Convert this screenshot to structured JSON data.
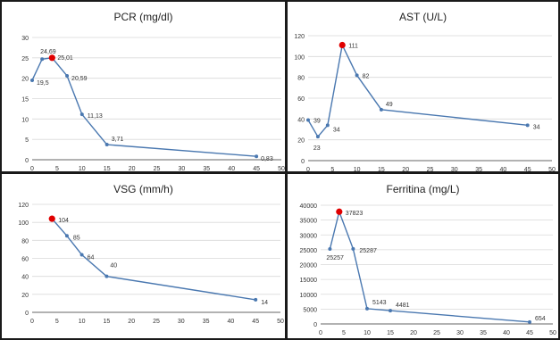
{
  "colors": {
    "line": "#4a78b0",
    "marker": "#4a78b0",
    "highlight": "#e00000",
    "grid": "#d9d9d9",
    "axis": "#333333"
  },
  "chart_data": [
    {
      "type": "line",
      "title": "PCR (mg/dl)",
      "xlim": [
        0,
        50
      ],
      "xticks": [
        0,
        5,
        10,
        15,
        20,
        25,
        30,
        35,
        40,
        45,
        50
      ],
      "ylim": [
        0,
        30
      ],
      "yticks": [
        0,
        5,
        10,
        15,
        20,
        25,
        30
      ],
      "grid": true,
      "x": [
        0,
        2,
        4,
        7,
        10,
        15,
        45
      ],
      "values": [
        19.5,
        24.69,
        25.01,
        20.59,
        11.13,
        3.71,
        0.83
      ],
      "labels": [
        "19,5",
        "24,69",
        "25,01",
        "20,59",
        "11,13",
        "3,71",
        "0,83"
      ],
      "highlight_index": 2
    },
    {
      "type": "line",
      "title": "AST (U/L)",
      "xlim": [
        0,
        50
      ],
      "xticks": [
        0,
        5,
        10,
        15,
        20,
        25,
        30,
        35,
        40,
        45,
        50
      ],
      "ylim": [
        0,
        120
      ],
      "yticks": [
        0,
        20,
        40,
        60,
        80,
        100,
        120
      ],
      "grid": true,
      "x": [
        0,
        2,
        4,
        7,
        10,
        15,
        45
      ],
      "values": [
        39,
        23,
        34,
        111,
        82,
        49,
        34
      ],
      "labels": [
        "39",
        "23",
        "34",
        "111",
        "82",
        "49",
        "34"
      ],
      "highlight_index": 3
    },
    {
      "type": "line",
      "title": "VSG (mm/h)",
      "xlim": [
        0,
        50
      ],
      "xticks": [
        0,
        5,
        10,
        15,
        20,
        25,
        30,
        35,
        40,
        45,
        50
      ],
      "ylim": [
        0,
        120
      ],
      "yticks": [
        0,
        20,
        40,
        60,
        80,
        100,
        120
      ],
      "grid": true,
      "x": [
        4,
        7,
        10,
        15,
        45
      ],
      "values": [
        104,
        85,
        64,
        40,
        14
      ],
      "labels": [
        "104",
        "85",
        "64",
        "40",
        "14"
      ],
      "highlight_index": 0
    },
    {
      "type": "line",
      "title": "Ferritina (mg/L)",
      "xlim": [
        0,
        50
      ],
      "xticks": [
        0,
        5,
        10,
        15,
        20,
        25,
        30,
        35,
        40,
        45,
        50
      ],
      "ylim": [
        0,
        40000
      ],
      "yticks": [
        0,
        5000,
        10000,
        15000,
        20000,
        25000,
        30000,
        35000,
        40000
      ],
      "grid": true,
      "x": [
        2,
        4,
        7,
        10,
        15,
        45
      ],
      "values": [
        25257,
        37823,
        25287,
        5143,
        4481,
        654
      ],
      "labels": [
        "25257",
        "37823",
        "25287",
        "5143",
        "4481",
        "654"
      ],
      "highlight_index": 1
    }
  ]
}
